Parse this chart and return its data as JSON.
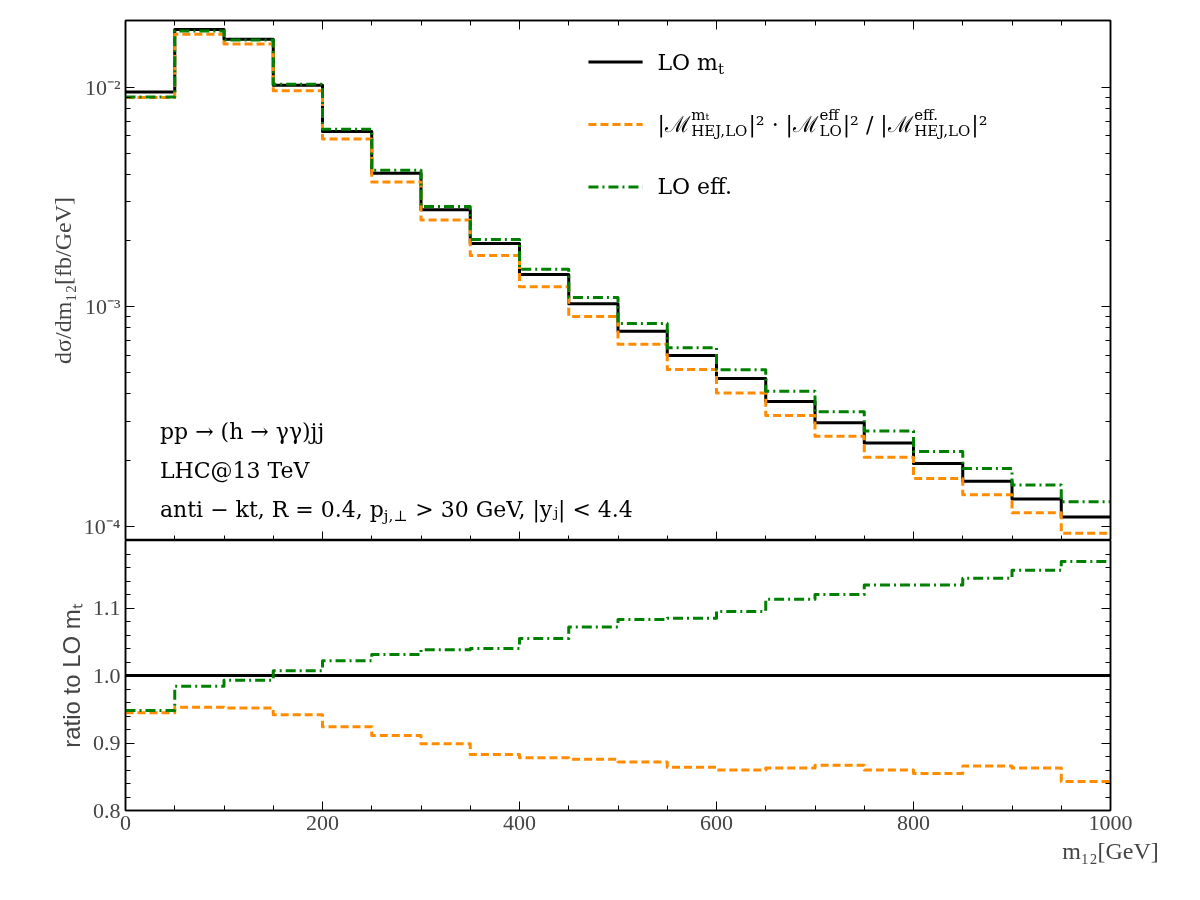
{
  "chart_data": [
    {
      "type": "histogram",
      "bins": [
        0,
        50,
        100,
        150,
        200,
        250,
        300,
        350,
        400,
        450,
        500,
        550,
        600,
        650,
        700,
        750,
        800,
        850,
        900,
        950,
        1000
      ],
      "ylabel": "dσ/dm₁₂[fb/GeV]",
      "log": "y",
      "ylim": [
        8.6e-05,
        0.0201
      ],
      "yticks": [
        {
          "value": 0.0001,
          "label": "10⁻⁴"
        },
        {
          "value": 0.001,
          "label": "10⁻³"
        },
        {
          "value": 0.01,
          "label": "10⁻²"
        },
        {
          "value": 0.0002,
          "label": null
        },
        {
          "value": 0.0003,
          "label": null
        },
        {
          "value": 0.0004,
          "label": null
        },
        {
          "value": 0.0005,
          "label": null
        },
        {
          "value": 0.0006,
          "label": null
        },
        {
          "value": 0.0007,
          "label": null
        },
        {
          "value": 0.0008,
          "label": null
        },
        {
          "value": 0.0009,
          "label": null
        },
        {
          "value": 0.002,
          "label": null
        },
        {
          "value": 0.003,
          "label": null
        },
        {
          "value": 0.004,
          "label": null
        },
        {
          "value": 0.005,
          "label": null
        },
        {
          "value": 0.006,
          "label": null
        },
        {
          "value": 0.007,
          "label": null
        },
        {
          "value": 0.008,
          "label": null
        },
        {
          "value": 0.009,
          "label": null
        }
      ],
      "xlim": [
        0,
        1000
      ],
      "xticks": [
        0,
        200,
        400,
        600,
        800,
        1000,
        {
          "value": 50,
          "label": null
        },
        {
          "value": 100,
          "label": null
        },
        {
          "value": 150,
          "label": null
        },
        {
          "value": 250,
          "label": null
        },
        {
          "value": 300,
          "label": null
        },
        {
          "value": 350,
          "label": null
        },
        {
          "value": 450,
          "label": null
        },
        {
          "value": 500,
          "label": null
        },
        {
          "value": 550,
          "label": null
        },
        {
          "value": 650,
          "label": null
        },
        {
          "value": 700,
          "label": null
        },
        {
          "value": 750,
          "label": null
        },
        {
          "value": 850,
          "label": null
        },
        {
          "value": 900,
          "label": null
        },
        {
          "value": 950,
          "label": null
        }
      ],
      "tick_labels": "y",
      "legend": "top right",
      "series": [
        {
          "name": "LO m$_{t}$",
          "color": "#000000",
          "line_style": "solid",
          "values": [
            0.00949,
            0.0183,
            0.0165,
            0.0102,
            0.00628,
            0.00405,
            0.00276,
            0.00194,
            0.0014,
            0.00103,
            0.000773,
            0.000598,
            0.00047,
            0.00037,
            0.000296,
            0.000239,
            0.000193,
            0.00016,
            0.000133,
            0.00011
          ]
        },
        {
          "name": "|ℳ$^{mₜ}$$_{HEJ,LO}$|² · |ℳ$^{eff}$$_{LO}$|² / |ℳ$^{eff.}$$_{HEJ,LO}$|²",
          "color": "#ff8c00",
          "line_style": "dashed",
          "values": [
            0.00897,
            0.0174,
            0.0157,
            0.00961,
            0.0058,
            0.00369,
            0.00248,
            0.00171,
            0.00123,
            0.000902,
            0.000674,
            0.000517,
            0.000404,
            0.000319,
            0.000257,
            0.000206,
            0.000165,
            0.000139,
            0.000115,
            9.27e-05
          ]
        },
        {
          "name": "LO eff.",
          "color": "#008000",
          "line_style": "dashdot",
          "values": [
            0.009,
            0.018,
            0.0164,
            0.0103,
            0.00642,
            0.00418,
            0.00286,
            0.00202,
            0.00148,
            0.0011,
            0.000837,
            0.000649,
            0.000515,
            0.000412,
            0.000332,
            0.000271,
            0.000219,
            0.000183,
            0.000154,
            0.000129
          ]
        }
      ],
      "annotations": [
        "pp → (h → γγ)jj",
        "LHC@13 TeV",
        "anti − kt, R = 0.4, p$_{j,⊥}$ > 30 GeV, |yⱼ| < 4.4"
      ]
    },
    {
      "type": "histogram",
      "bins": [
        0,
        50,
        100,
        150,
        200,
        250,
        300,
        350,
        400,
        450,
        500,
        550,
        600,
        650,
        700,
        750,
        800,
        850,
        900,
        950,
        1000
      ],
      "ylabel": "ratio to LO mₜ",
      "xlabel": "m₁₂[GeV]",
      "ylim": [
        0.8,
        1.2
      ],
      "yticks": [
        0.8,
        0.9,
        {
          "value": 1.0,
          "label": "1.0"
        },
        1.1,
        {
          "value": 0.82,
          "label": null
        },
        {
          "value": 0.84,
          "label": null
        },
        {
          "value": 0.86,
          "label": null
        },
        {
          "value": 0.88,
          "label": null
        },
        {
          "value": 0.92,
          "label": null
        },
        {
          "value": 0.94,
          "label": null
        },
        {
          "value": 0.96,
          "label": null
        },
        {
          "value": 0.98,
          "label": null
        },
        {
          "value": 1.02,
          "label": null
        },
        {
          "value": 1.04,
          "label": null
        },
        {
          "value": 1.06,
          "label": null
        },
        {
          "value": 1.08,
          "label": null
        },
        {
          "value": 1.12,
          "label": null
        },
        {
          "value": 1.14,
          "label": null
        },
        {
          "value": 1.16,
          "label": null
        },
        {
          "value": 1.18,
          "label": null
        }
      ],
      "xlim": [
        0,
        1000
      ],
      "xticks": [
        0,
        200,
        400,
        600,
        800,
        1000,
        {
          "value": 50,
          "label": null
        },
        {
          "value": 100,
          "label": null
        },
        {
          "value": 150,
          "label": null
        },
        {
          "value": 250,
          "label": null
        },
        {
          "value": 300,
          "label": null
        },
        {
          "value": 350,
          "label": null
        },
        {
          "value": 450,
          "label": null
        },
        {
          "value": 500,
          "label": null
        },
        {
          "value": 550,
          "label": null
        },
        {
          "value": 650,
          "label": null
        },
        {
          "value": 700,
          "label": null
        },
        {
          "value": 750,
          "label": null
        },
        {
          "value": 850,
          "label": null
        },
        {
          "value": 900,
          "label": null
        },
        {
          "value": 950,
          "label": null
        }
      ],
      "series": [
        {
          "color": "#000000",
          "line_style": "solid",
          "values": [
            1,
            1,
            1,
            1,
            1,
            1,
            1,
            1,
            1,
            1,
            1,
            1,
            1,
            1,
            1,
            1,
            1,
            1,
            1,
            1
          ]
        },
        {
          "color": "#ff8c00",
          "line_style": "dashed",
          "values": [
            0.945,
            0.953,
            0.952,
            0.942,
            0.924,
            0.911,
            0.899,
            0.883,
            0.878,
            0.876,
            0.872,
            0.864,
            0.86,
            0.863,
            0.867,
            0.86,
            0.855,
            0.866,
            0.863,
            0.843
          ]
        },
        {
          "color": "#008000",
          "line_style": "dashdot",
          "values": [
            0.948,
            0.984,
            0.993,
            1.007,
            1.022,
            1.031,
            1.038,
            1.04,
            1.055,
            1.072,
            1.083,
            1.085,
            1.095,
            1.113,
            1.12,
            1.134,
            1.134,
            1.144,
            1.156,
            1.169
          ]
        }
      ]
    }
  ]
}
